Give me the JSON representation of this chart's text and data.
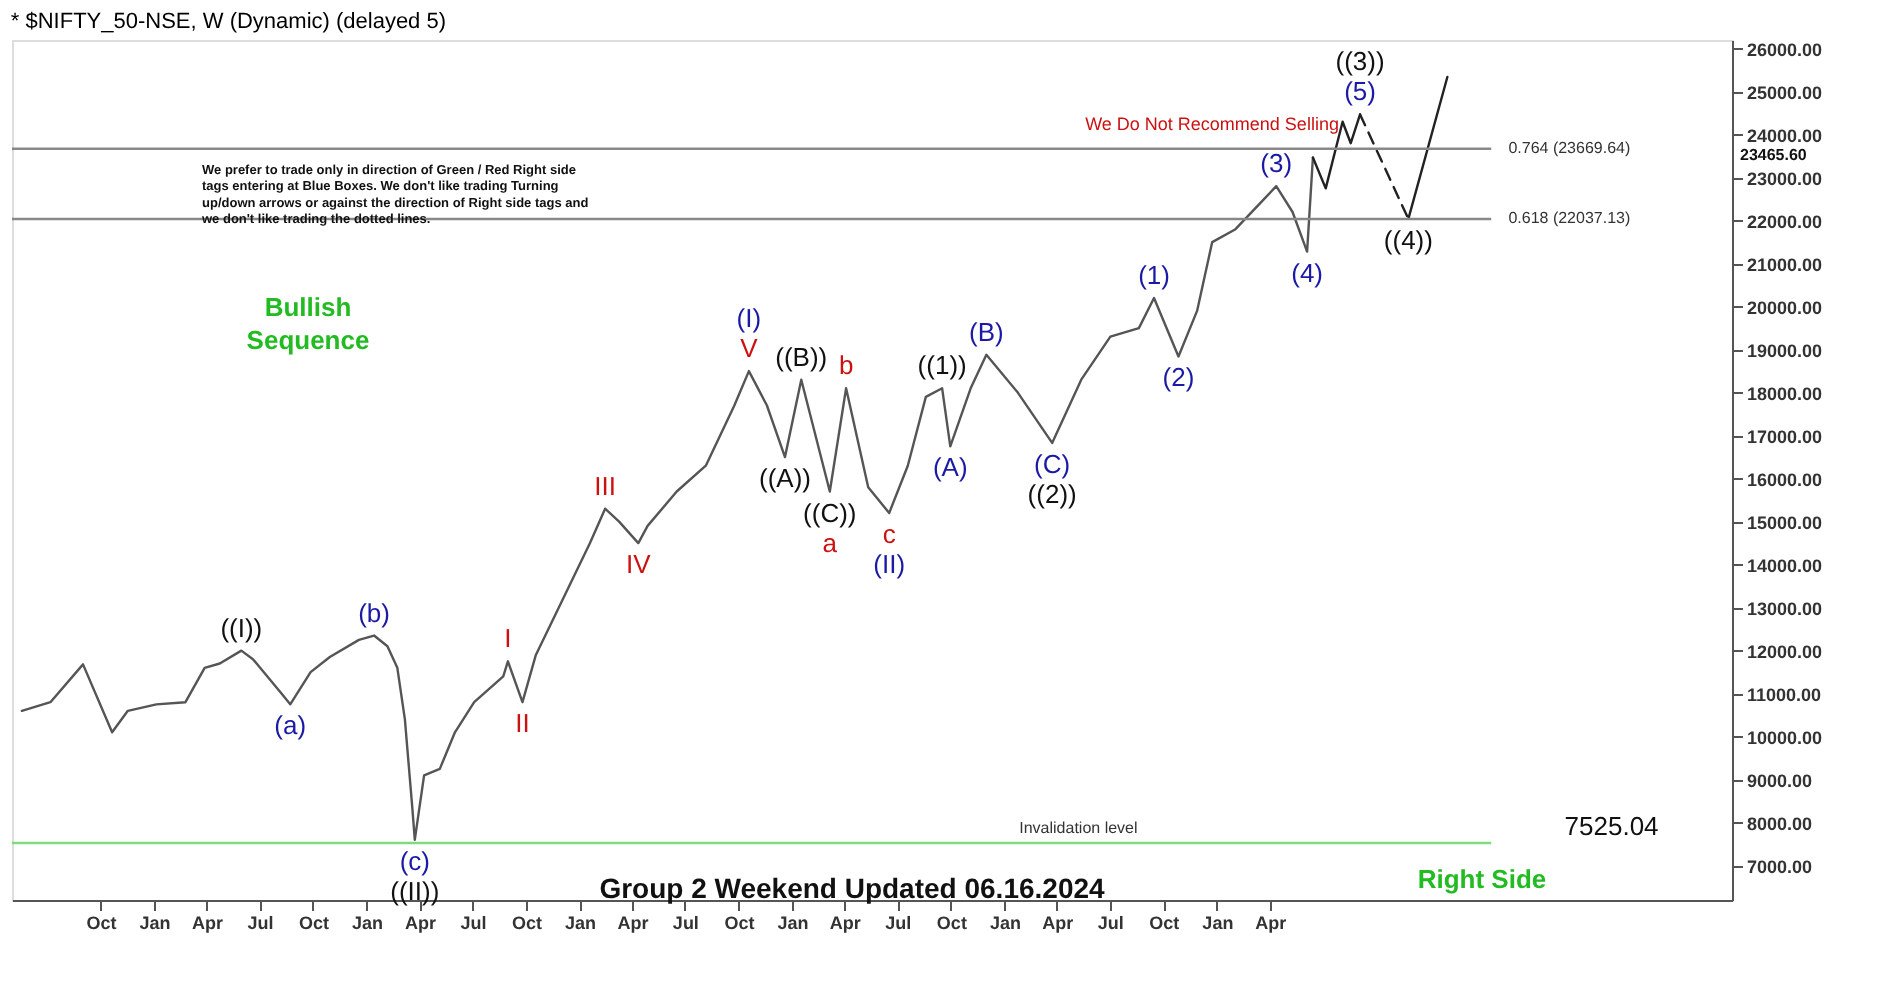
{
  "chart_data": {
    "type": "line",
    "title": "* $NIFTY_50-NSE, W (Dynamic) (delayed 5)",
    "xlim": [
      "2018-05-02",
      "2026-06-04"
    ],
    "ylim": [
      6200,
      26200
    ],
    "xticks": [
      {
        "value": "2018-10-01",
        "label": "Oct"
      },
      {
        "value": "2019-01-01",
        "label": "Jan"
      },
      {
        "value": "2019-04-01",
        "label": "Apr"
      },
      {
        "value": "2019-07-01",
        "label": "Jul"
      },
      {
        "value": "2019-10-01",
        "label": "Oct"
      },
      {
        "value": "2020-01-01",
        "label": "Jan"
      },
      {
        "value": "2020-04-01",
        "label": "Apr"
      },
      {
        "value": "2020-07-01",
        "label": "Jul"
      },
      {
        "value": "2020-10-01",
        "label": "Oct"
      },
      {
        "value": "2021-01-01",
        "label": "Jan"
      },
      {
        "value": "2021-04-01",
        "label": "Apr"
      },
      {
        "value": "2021-07-01",
        "label": "Jul"
      },
      {
        "value": "2021-10-01",
        "label": "Oct"
      },
      {
        "value": "2022-01-01",
        "label": "Jan"
      },
      {
        "value": "2022-04-01",
        "label": "Apr"
      },
      {
        "value": "2022-07-01",
        "label": "Jul"
      },
      {
        "value": "2022-10-01",
        "label": "Oct"
      },
      {
        "value": "2023-01-01",
        "label": "Jan"
      },
      {
        "value": "2023-04-01",
        "label": "Apr"
      },
      {
        "value": "2023-07-01",
        "label": "Jul"
      },
      {
        "value": "2023-10-01",
        "label": "Oct"
      },
      {
        "value": "2024-01-01",
        "label": "Jan"
      },
      {
        "value": "2024-04-01",
        "label": "Apr"
      }
    ],
    "yticks": [
      {
        "value": 7000,
        "label": "7000.00"
      },
      {
        "value": 8000,
        "label": "8000.00"
      },
      {
        "value": 9000,
        "label": "9000.00"
      },
      {
        "value": 10000,
        "label": "10000.00"
      },
      {
        "value": 11000,
        "label": "11000.00"
      },
      {
        "value": 12000,
        "label": "12000.00"
      },
      {
        "value": 13000,
        "label": "13000.00"
      },
      {
        "value": 14000,
        "label": "14000.00"
      },
      {
        "value": 15000,
        "label": "15000.00"
      },
      {
        "value": 16000,
        "label": "16000.00"
      },
      {
        "value": 17000,
        "label": "17000.00"
      },
      {
        "value": 18000,
        "label": "18000.00"
      },
      {
        "value": 19000,
        "label": "19000.00"
      },
      {
        "value": 20000,
        "label": "20000.00"
      },
      {
        "value": 21000,
        "label": "21000.00"
      },
      {
        "value": 22000,
        "label": "22000.00"
      },
      {
        "value": 23000,
        "label": "23000.00"
      },
      {
        "value": 24000,
        "label": "24000.00"
      },
      {
        "value": 25000,
        "label": "25000.00"
      },
      {
        "value": 26000,
        "label": "26000.00"
      }
    ],
    "grid": false,
    "series": [
      {
        "color": "#555555",
        "line_style": "solid",
        "x": [
          "2018-05-19",
          "2018-07-07",
          "2018-09-01",
          "2018-10-21",
          "2018-11-17",
          "2019-01-05",
          "2019-02-24",
          "2019-03-29",
          "2019-04-24",
          "2019-05-31",
          "2019-06-20",
          "2019-08-08",
          "2019-08-23",
          "2019-09-27",
          "2019-10-30",
          "2019-12-19",
          "2020-01-14",
          "2020-02-06",
          "2020-02-23",
          "2020-03-07",
          "2020-03-20",
          "2020-03-24",
          "2020-04-09",
          "2020-05-06",
          "2020-06-01",
          "2020-07-04",
          "2020-08-23",
          "2020-08-31",
          "2020-09-25",
          "2020-10-18",
          "2020-11-30",
          "2021-01-19",
          "2021-02-14",
          "2021-03-10",
          "2021-04-12",
          "2021-04-28",
          "2021-06-17",
          "2021-08-06",
          "2021-09-24",
          "2021-10-19",
          "2021-11-19",
          "2021-12-20",
          "2022-01-17",
          "2022-03-07",
          "2022-04-04",
          "2022-05-12",
          "2022-06-17",
          "2022-07-19",
          "2022-08-19",
          "2022-09-16",
          "2022-09-30",
          "2022-11-04",
          "2022-12-01",
          "2023-01-24",
          "2023-03-24",
          "2023-05-13",
          "2023-07-02",
          "2023-08-20",
          "2023-09-15",
          "2023-10-27",
          "2023-11-28",
          "2023-12-24",
          "2024-02-02",
          "2024-03-22",
          "2024-04-12",
          "2024-05-10",
          "2024-06-04",
          "2024-06-14"
        ],
        "values": [
          10600,
          10800,
          11680,
          10100,
          10600,
          10750,
          10800,
          11600,
          11700,
          12000,
          11800,
          11000,
          10750,
          11500,
          11850,
          12250,
          12350,
          12100,
          11600,
          10400,
          8300,
          7600,
          9100,
          9250,
          10100,
          10800,
          11400,
          11750,
          10800,
          11900,
          13100,
          14500,
          15300,
          15000,
          14500,
          14900,
          15700,
          16300,
          17700,
          18500,
          17700,
          16500,
          18300,
          15700,
          18100,
          15800,
          15200,
          16300,
          17900,
          18100,
          16750,
          18100,
          18880,
          18000,
          16830,
          18300,
          19300,
          19500,
          20200,
          18840,
          19900,
          21500,
          21800,
          22500,
          22800,
          22200,
          21280,
          23465.6
        ]
      },
      {
        "color": "#222222",
        "line_style": "solid",
        "x": [
          "2024-06-14",
          "2024-07-06",
          "2024-08-04",
          "2024-08-18",
          "2024-09-03"
        ],
        "values": [
          23465.6,
          22750,
          24300,
          23800,
          24470
        ]
      },
      {
        "color": "#222222",
        "line_style": "dashed",
        "x": [
          "2024-09-03",
          "2024-11-25"
        ],
        "values": [
          24470,
          22040
        ]
      },
      {
        "color": "#222222",
        "line_style": "solid",
        "x": [
          "2024-11-25",
          "2025-01-31"
        ],
        "values": [
          22040,
          25340
        ]
      }
    ],
    "ref_lines": [
      {
        "axis": "y",
        "value": 23669.64,
        "label": "0.764 (23669.64)",
        "color": "#888888"
      },
      {
        "axis": "y",
        "value": 22037.13,
        "label": "0.618 (22037.13)",
        "color": "#888888"
      },
      {
        "axis": "y",
        "value": 7525.04,
        "label": "Invalidation level",
        "color": "#7ddc7d"
      }
    ],
    "annotations": [
      {
        "text": "((I))",
        "x": "2019-05-31",
        "y": 12000
      },
      {
        "text": "(a)",
        "x": "2019-08-23",
        "y": 10750
      },
      {
        "text": "(b)",
        "x": "2020-01-14",
        "y": 12350
      },
      {
        "text": "(c)",
        "x": "2020-03-24",
        "y": 7600
      },
      {
        "text": "((II))",
        "x": "2020-03-24",
        "y": 7600
      },
      {
        "text": "I",
        "x": "2020-08-31",
        "y": 11750
      },
      {
        "text": "II",
        "x": "2020-09-25",
        "y": 10800
      },
      {
        "text": "III",
        "x": "2021-02-14",
        "y": 15300
      },
      {
        "text": "IV",
        "x": "2021-04-12",
        "y": 14500
      },
      {
        "text": "V",
        "x": "2021-10-19",
        "y": 18500
      },
      {
        "text": "(I)",
        "x": "2021-10-19",
        "y": 18500
      },
      {
        "text": "((A))",
        "x": "2021-12-20",
        "y": 16500
      },
      {
        "text": "((B))",
        "x": "2022-01-17",
        "y": 18300
      },
      {
        "text": "((C))",
        "x": "2022-03-07",
        "y": 15700
      },
      {
        "text": "a",
        "x": "2022-03-07",
        "y": 15700
      },
      {
        "text": "b",
        "x": "2022-04-04",
        "y": 18100
      },
      {
        "text": "c",
        "x": "2022-06-17",
        "y": 15200
      },
      {
        "text": "(II)",
        "x": "2022-06-17",
        "y": 15200
      },
      {
        "text": "((1))",
        "x": "2022-09-16",
        "y": 18100
      },
      {
        "text": "(A)",
        "x": "2022-09-30",
        "y": 16750
      },
      {
        "text": "(B)",
        "x": "2022-12-01",
        "y": 18880
      },
      {
        "text": "(C)",
        "x": "2023-03-24",
        "y": 16830
      },
      {
        "text": "((2))",
        "x": "2023-03-24",
        "y": 16830
      },
      {
        "text": "(1)",
        "x": "2023-09-15",
        "y": 20200
      },
      {
        "text": "(2)",
        "x": "2023-10-27",
        "y": 18840
      },
      {
        "text": "(3)",
        "x": "2024-04-12",
        "y": 22800
      },
      {
        "text": "(4)",
        "x": "2024-06-04",
        "y": 21280
      },
      {
        "text": "(5)",
        "x": "2024-09-03",
        "y": 24470
      },
      {
        "text": "((3))",
        "x": "2024-09-03",
        "y": 24470
      },
      {
        "text": "((4))",
        "x": "2024-11-25",
        "y": 22040
      },
      "23465.60",
      "7525.04",
      "We prefer to trade only in direction of Green / Red Right side tags entering at Blue Boxes. We don't like trading Turning up/down arrows or against the direction of Right side tags and we don't like trading the dotted lines.",
      "Bullish Sequence",
      "We Do Not Recommend Selling",
      "Right Side",
      "Group 2 Weekend Updated 06.16.2024"
    ]
  }
}
